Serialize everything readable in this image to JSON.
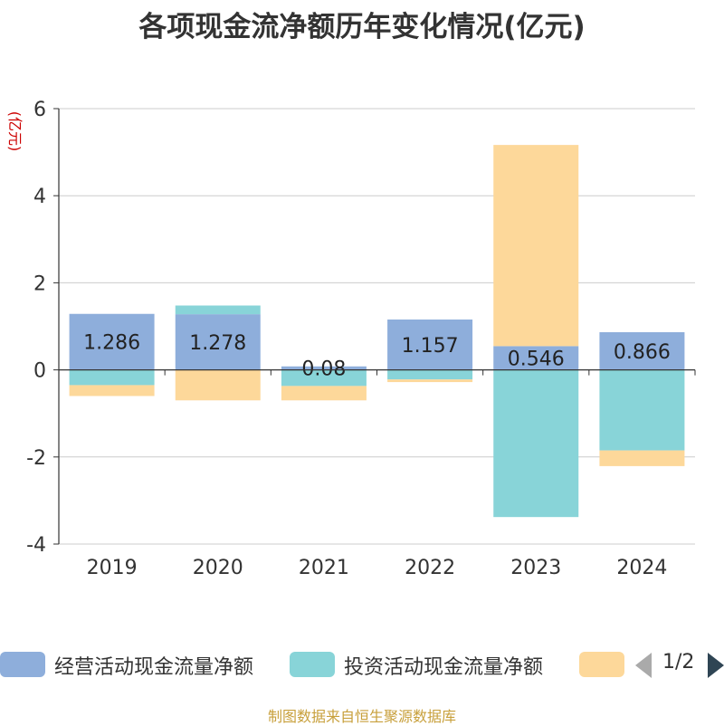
{
  "page": {
    "title": "各项现金流净额历年变化情况(亿元)",
    "source": "制图数据来自恒生聚源数据库"
  },
  "legend": {
    "items": [
      {
        "label": "经营活动现金流量净额",
        "color": "#8eaedb"
      },
      {
        "label": "投资活动现金流量净额",
        "color": "#88d4d8"
      },
      {
        "label": "",
        "color": "#fdd89a"
      }
    ],
    "pager": "1/2"
  },
  "chart_data": {
    "type": "bar",
    "stacked": true,
    "ylabel": "(亿元)",
    "ylim": [
      -4,
      6
    ],
    "yticks": [
      -4,
      -2,
      0,
      2,
      4,
      6
    ],
    "grid": true,
    "legend_position": "bottom",
    "categories": [
      "2019",
      "2020",
      "2021",
      "2022",
      "2023",
      "2024"
    ],
    "series": [
      {
        "name": "经营活动现金流量净额",
        "color": "#8eaedb",
        "values": [
          1.286,
          1.278,
          0.08,
          1.157,
          0.546,
          0.866
        ],
        "labels": [
          "1.286",
          "1.278",
          "0.08",
          "1.157",
          "0.546",
          "0.866"
        ]
      },
      {
        "name": "投资活动现金流量净额",
        "color": "#88d4d8",
        "values": [
          -0.35,
          0.2,
          -0.37,
          -0.22,
          -3.38,
          -1.85
        ]
      },
      {
        "name": "",
        "color": "#fdd89a",
        "values": [
          -0.25,
          -0.7,
          -0.33,
          -0.06,
          4.62,
          -0.36
        ]
      }
    ]
  }
}
